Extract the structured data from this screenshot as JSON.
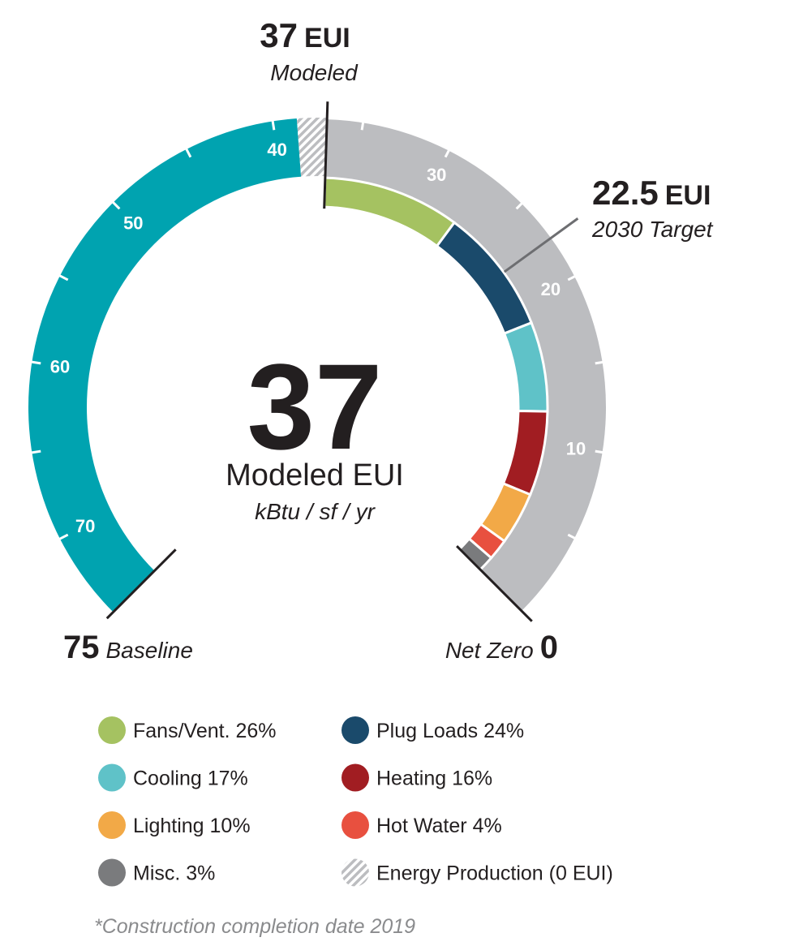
{
  "chart_data": {
    "type": "gauge",
    "modeled": {
      "value": 37,
      "unit": "EUI",
      "label": "Modeled"
    },
    "target": {
      "value": 22.5,
      "unit": "EUI",
      "label": "2030 Target"
    },
    "baseline": {
      "value": 75,
      "label": "Baseline",
      "color": "#00a3b0"
    },
    "net_zero": {
      "value": 0,
      "label": "Net Zero",
      "color": "#bcbdc0"
    },
    "center": {
      "value": 37,
      "label": "Modeled EUI",
      "unit": "kBtu / sf / yr"
    },
    "ticks": [
      10,
      20,
      30,
      40,
      50,
      60,
      70
    ],
    "minor_ticks": [
      5,
      15,
      25,
      35,
      45,
      55,
      65
    ],
    "segments": [
      {
        "name": "Fans/Vent.",
        "value": 26,
        "value_label": "26%",
        "color": "#a5c261"
      },
      {
        "name": "Plug Loads",
        "value": 24,
        "value_label": "24%",
        "color": "#1a4a6b"
      },
      {
        "name": "Cooling",
        "value": 17,
        "value_label": "17%",
        "color": "#5fc2c8"
      },
      {
        "name": "Heating",
        "value": 16,
        "value_label": "16%",
        "color": "#a11d22"
      },
      {
        "name": "Lighting",
        "value": 10,
        "value_label": "10%",
        "color": "#f2a947"
      },
      {
        "name": "Hot Water",
        "value": 4,
        "value_label": "4%",
        "color": "#e8503f"
      },
      {
        "name": "Misc.",
        "value": 3,
        "value_label": "3%",
        "color": "#7a7b7d"
      }
    ],
    "energy_production": {
      "name": "Energy Production",
      "value": 0,
      "value_label": "(0 EUI)"
    },
    "footnote": "*Construction completion date 2019"
  }
}
